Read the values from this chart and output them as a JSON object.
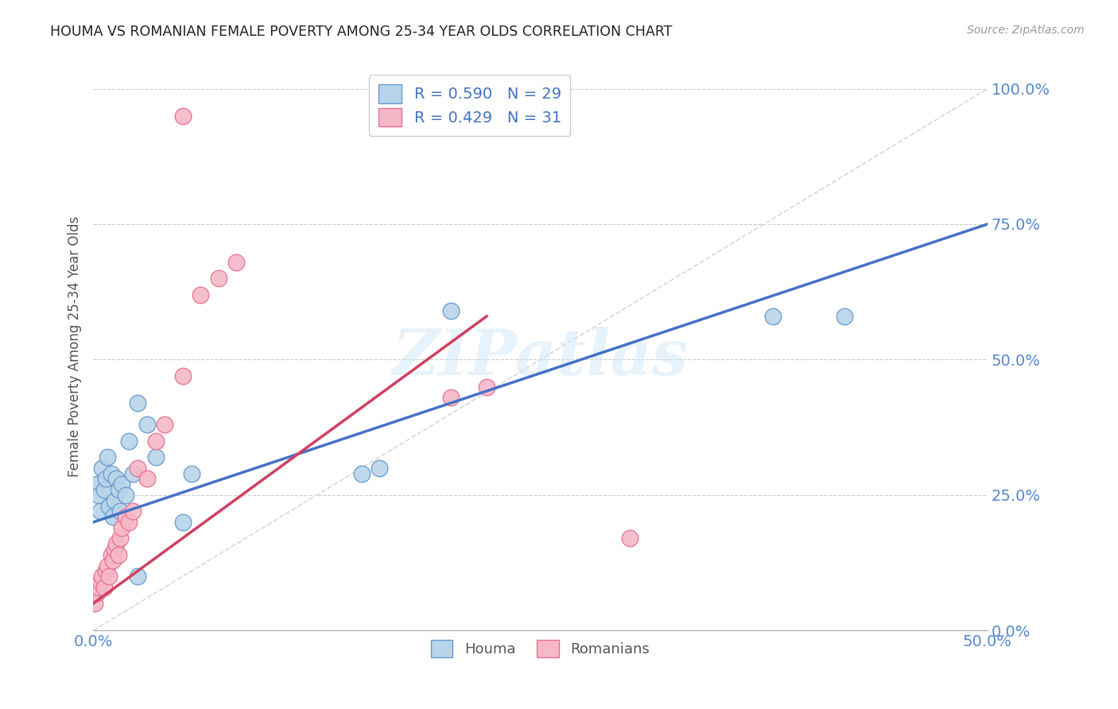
{
  "title": "HOUMA VS ROMANIAN FEMALE POVERTY AMONG 25-34 YEAR OLDS CORRELATION CHART",
  "source": "Source: ZipAtlas.com",
  "ylabel": "Female Poverty Among 25-34 Year Olds",
  "xlim": [
    0.0,
    0.5
  ],
  "ylim": [
    0.0,
    1.05
  ],
  "xticks": [
    0.0,
    0.5
  ],
  "yticks": [
    0.0,
    0.25,
    0.5,
    0.75,
    1.0
  ],
  "xtick_labels": [
    "0.0%",
    "50.0%"
  ],
  "ytick_labels": [
    "0.0%",
    "25.0%",
    "50.0%",
    "75.0%",
    "100.0%"
  ],
  "houma_fill_color": "#b8d4ea",
  "romanian_fill_color": "#f5b8c8",
  "houma_edge_color": "#6699cc",
  "romanian_edge_color": "#e87090",
  "houma_line_color": "#4472c4",
  "romanian_line_color": "#d04060",
  "axis_label_color": "#5588cc",
  "diagonal_color": "#d8d8d8",
  "houma_R": 0.59,
  "houma_N": 29,
  "romanian_R": 0.429,
  "romanian_N": 31,
  "watermark": "ZIPatlas",
  "houma_line_x0": 0.0,
  "houma_line_y0": 0.2,
  "houma_line_x1": 0.5,
  "houma_line_y1": 0.75,
  "romanian_line_x0": 0.0,
  "romanian_line_y0": 0.05,
  "romanian_line_x1": 0.22,
  "romanian_line_y1": 0.58,
  "houma_x": [
    0.002,
    0.003,
    0.004,
    0.005,
    0.006,
    0.007,
    0.008,
    0.009,
    0.01,
    0.011,
    0.012,
    0.013,
    0.014,
    0.015,
    0.016,
    0.018,
    0.02,
    0.022,
    0.025,
    0.03,
    0.035,
    0.05,
    0.055,
    0.15,
    0.16,
    0.2,
    0.38,
    0.42,
    0.025
  ],
  "houma_y": [
    0.27,
    0.25,
    0.22,
    0.3,
    0.26,
    0.28,
    0.32,
    0.23,
    0.29,
    0.21,
    0.24,
    0.28,
    0.26,
    0.22,
    0.27,
    0.25,
    0.35,
    0.29,
    0.42,
    0.38,
    0.32,
    0.2,
    0.29,
    0.29,
    0.3,
    0.59,
    0.58,
    0.58,
    0.1
  ],
  "romanian_x": [
    0.001,
    0.002,
    0.003,
    0.004,
    0.005,
    0.006,
    0.007,
    0.008,
    0.009,
    0.01,
    0.011,
    0.012,
    0.013,
    0.014,
    0.015,
    0.016,
    0.018,
    0.02,
    0.022,
    0.025,
    0.03,
    0.035,
    0.04,
    0.05,
    0.06,
    0.07,
    0.08,
    0.2,
    0.22,
    0.3,
    0.05
  ],
  "romanian_y": [
    0.05,
    0.07,
    0.08,
    0.09,
    0.1,
    0.08,
    0.11,
    0.12,
    0.1,
    0.14,
    0.13,
    0.15,
    0.16,
    0.14,
    0.17,
    0.19,
    0.21,
    0.2,
    0.22,
    0.3,
    0.28,
    0.35,
    0.38,
    0.47,
    0.62,
    0.65,
    0.68,
    0.43,
    0.45,
    0.17,
    0.95
  ]
}
